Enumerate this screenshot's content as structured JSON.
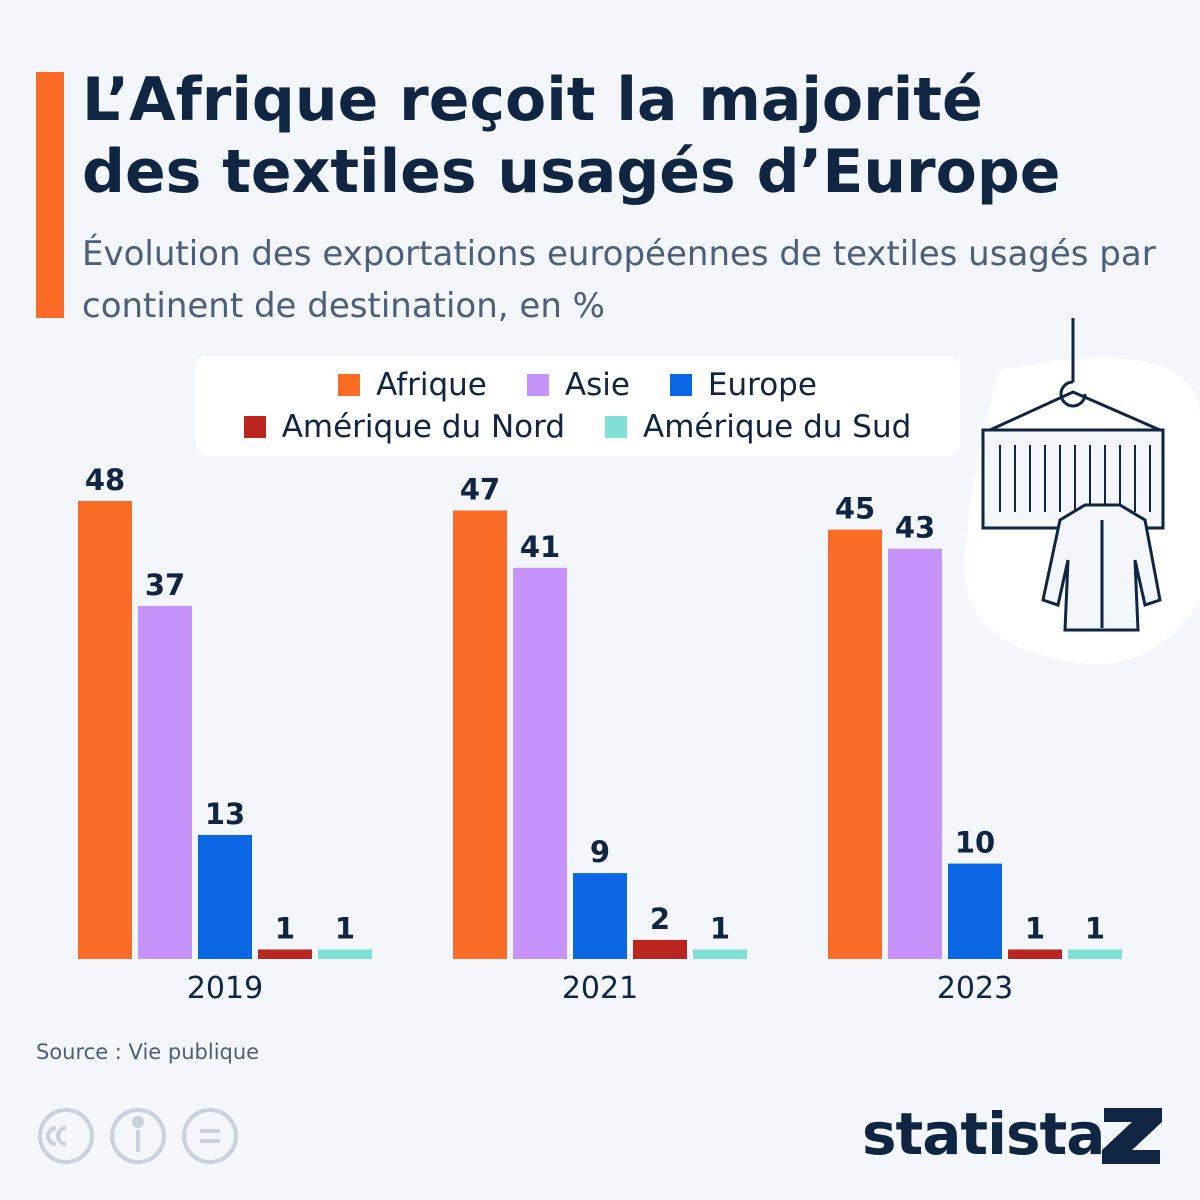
{
  "chart_data": {
    "type": "grouped-bar",
    "title": "L’Afrique reçoit la majorité des textiles usagés d’Europe",
    "subtitle": "Évolution des exportations européennes de textiles usagés par continent de destination, en %",
    "categories": [
      "2019",
      "2021",
      "2023"
    ],
    "series": [
      {
        "name": "Afrique",
        "color": "#fa6b25",
        "values": [
          48,
          47,
          45
        ]
      },
      {
        "name": "Asie",
        "color": "#c693fb",
        "values": [
          37,
          41,
          43
        ]
      },
      {
        "name": "Europe",
        "color": "#0b66e3",
        "values": [
          13,
          9,
          10
        ]
      },
      {
        "name": "Amérique du Nord",
        "color": "#ba2520",
        "values": [
          1,
          2,
          1
        ]
      },
      {
        "name": "Amérique du Sud",
        "color": "#80e0d5",
        "values": [
          1,
          1,
          1
        ]
      }
    ],
    "source": "Source : Vie publique",
    "brand": "statista"
  }
}
